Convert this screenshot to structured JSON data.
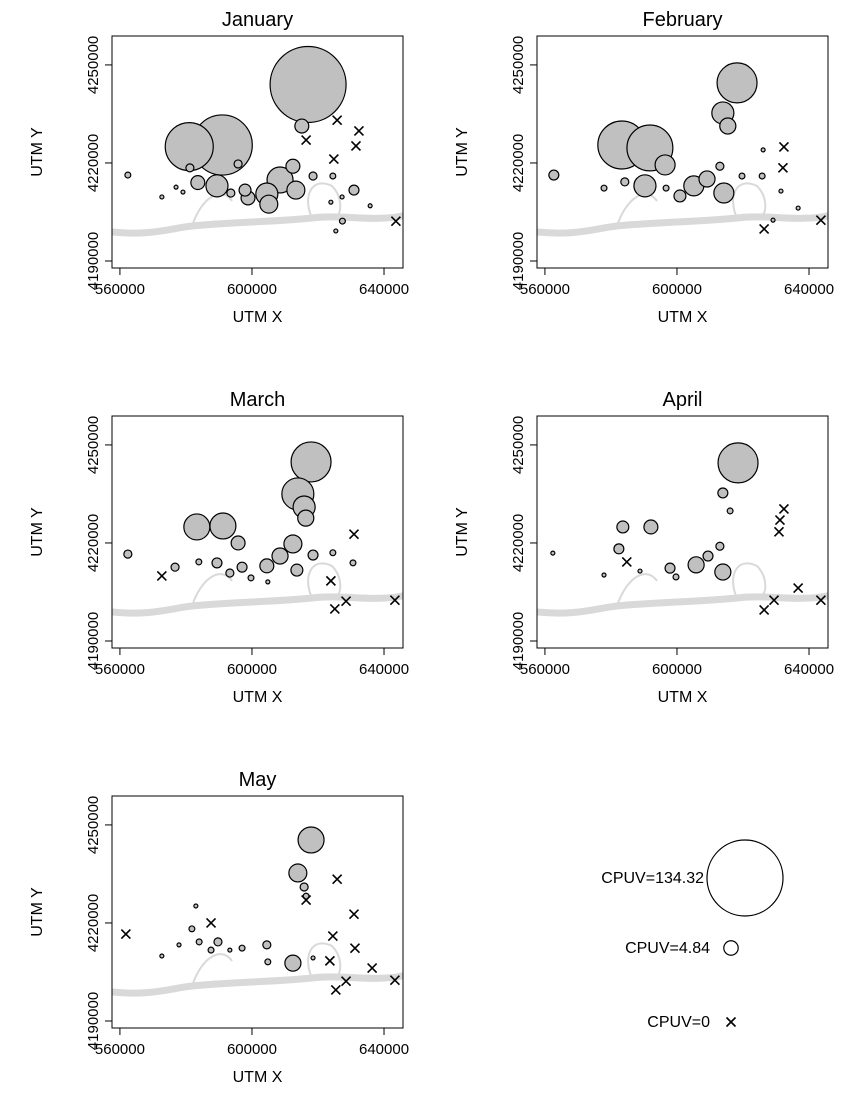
{
  "chart_data": [
    {
      "type": "bubble",
      "title": "January",
      "x_label": "UTM X",
      "y_label": "UTM Y",
      "xlim": [
        557600,
        645750
      ],
      "ylim": [
        4187860,
        4258850
      ],
      "xticks": [
        560000,
        600000,
        640000
      ],
      "yticks": [
        4190000,
        4220000,
        4250000
      ],
      "series": [
        {
          "name": "CPUV",
          "color": "#c0c0c0",
          "x": [
            617000,
            581000,
            591000,
            589400,
            583600,
            595800,
            597900,
            598800,
            593600,
            604500,
            605100,
            608500,
            613300,
            612400,
            615100,
            562400,
            572700,
            577000,
            579100,
            581200,
            618500,
            624500,
            630900,
            623900,
            627400,
            627300,
            625400,
            635800,
            625800,
            632400,
            631500,
            624800,
            616400,
            643600
          ],
          "values": [
            4244000,
            4225000,
            4225500,
            4213000,
            4214000,
            4219700,
            4211700,
            4209300,
            4210800,
            4210500,
            4207400,
            4214800,
            4211700,
            4219000,
            4231300,
            4216300,
            4209600,
            4212600,
            4211100,
            4218500,
            4216000,
            4216000,
            4211700,
            4208000,
            4202200,
            4209600,
            4199200,
            4206900,
            4233100,
            4229800,
            4225200,
            4221200,
            4227000,
            4202200
          ],
          "sizes": [
            134.32,
            53.6,
            84,
            11.3,
            4.5,
            1.5,
            3.3,
            4.5,
            1.5,
            11.3,
            7.5,
            15.7,
            7.5,
            4.5,
            4.5,
            0.8,
            0.37,
            0.37,
            0.37,
            1.5,
            1.5,
            0.8,
            2.3,
            0.37,
            0.8,
            0.37,
            0.37,
            0.37,
            0,
            0,
            0,
            0,
            0,
            0
          ]
        }
      ]
    },
    {
      "type": "bubble",
      "title": "February",
      "x_label": "UTM X",
      "y_label": "UTM Y",
      "xlim": [
        557600,
        645750
      ],
      "ylim": [
        4187860,
        4258850
      ],
      "xticks": [
        560000,
        600000,
        640000
      ],
      "yticks": [
        4190000,
        4220000,
        4250000
      ],
      "series": [
        {
          "name": "CPUV",
          "color": "#c0c0c0",
          "x": [
            618200,
            613900,
            615400,
            583300,
            591800,
            596400,
            590300,
            605100,
            609100,
            614200,
            600900,
            596700,
            562700,
            577900,
            584200,
            613000,
            619700,
            625800,
            626100,
            631500,
            636700,
            629100,
            632400,
            632100,
            626400,
            643600
          ],
          "values": [
            4244500,
            4235300,
            4231300,
            4225500,
            4224600,
            4219400,
            4213000,
            4213000,
            4215100,
            4210800,
            4209900,
            4212300,
            4216300,
            4212300,
            4214200,
            4219000,
            4216000,
            4216000,
            4224000,
            4211400,
            4206200,
            4202500,
            4224900,
            4218500,
            4199800,
            4202500
          ],
          "sizes": [
            37.2,
            11.3,
            6,
            53.6,
            49,
            9.3,
            11.3,
            9.3,
            6,
            9.3,
            3.3,
            0.8,
            2.3,
            0.8,
            1.5,
            1.5,
            0.8,
            0.8,
            0.37,
            0.37,
            0.37,
            0.37,
            0,
            0,
            0,
            0
          ]
        }
      ]
    },
    {
      "type": "bubble",
      "title": "March",
      "x_label": "UTM X",
      "y_label": "UTM Y",
      "xlim": [
        557600,
        645750
      ],
      "ylim": [
        4187860,
        4258850
      ],
      "xticks": [
        560000,
        600000,
        640000
      ],
      "yticks": [
        4190000,
        4220000,
        4250000
      ],
      "series": [
        {
          "name": "CPUV",
          "color": "#c0c0c0",
          "x": [
            617900,
            613900,
            615800,
            616300,
            583300,
            591200,
            595800,
            612400,
            608500,
            604500,
            613600,
            618500,
            597000,
            589400,
            583900,
            576700,
            593300,
            562400,
            599700,
            604800,
            624500,
            630600,
            572700,
            630900,
            623900,
            625100,
            628500,
            643300
          ],
          "values": [
            4244800,
            4235000,
            4231000,
            4227600,
            4224900,
            4225200,
            4220000,
            4219700,
            4216000,
            4213000,
            4211700,
            4216300,
            4212600,
            4213900,
            4214200,
            4212600,
            4210800,
            4216600,
            4209300,
            4208100,
            4217000,
            4213900,
            4209900,
            4222700,
            4208400,
            4199800,
            4202200,
            4202500
          ],
          "sizes": [
            37.2,
            23.8,
            11.3,
            6,
            15.7,
            15.7,
            4.5,
            7.5,
            6,
            4.5,
            3.3,
            2.3,
            2.3,
            2.3,
            0.8,
            1.5,
            1.5,
            1.5,
            0.8,
            0.37,
            0.8,
            0.8,
            0,
            0,
            0,
            0,
            0,
            0
          ]
        }
      ]
    },
    {
      "type": "bubble",
      "title": "April",
      "x_label": "UTM X",
      "y_label": "UTM Y",
      "xlim": [
        557600,
        645750
      ],
      "ylim": [
        4187860,
        4258850
      ],
      "xticks": [
        560000,
        600000,
        640000
      ],
      "yticks": [
        4190000,
        4220000,
        4250000
      ],
      "series": [
        {
          "name": "CPUV",
          "color": "#c0c0c0",
          "x": [
            618500,
            613900,
            583600,
            592100,
            582400,
            613900,
            605800,
            609400,
            597900,
            613000,
            616100,
            599700,
            588800,
            577900,
            562400,
            584800,
            632400,
            631200,
            630900,
            636700,
            629400,
            626400,
            643600
          ],
          "values": [
            4244500,
            4235300,
            4224900,
            4224900,
            4218200,
            4211100,
            4213300,
            4216000,
            4212300,
            4219000,
            4229800,
            4209600,
            4211400,
            4210200,
            4216900,
            4214200,
            4230400,
            4227000,
            4223400,
            4206200,
            4202500,
            4199500,
            4202500
          ],
          "sizes": [
            37.2,
            2.3,
            3.3,
            4.5,
            2.3,
            6,
            6,
            2.3,
            2.3,
            1.5,
            0.8,
            0.8,
            0.37,
            0.37,
            0.37,
            0,
            0,
            0,
            0,
            0,
            0,
            0,
            0
          ]
        }
      ]
    },
    {
      "type": "bubble",
      "title": "May",
      "x_label": "UTM X",
      "y_label": "UTM Y",
      "xlim": [
        557600,
        645750
      ],
      "ylim": [
        4187860,
        4258850
      ],
      "xticks": [
        560000,
        600000,
        640000
      ],
      "yticks": [
        4190000,
        4220000,
        4250000
      ],
      "series": [
        {
          "name": "CPUV",
          "color": "#c0c0c0",
          "x": [
            617900,
            613900,
            615800,
            612400,
            616400,
            581800,
            589700,
            584000,
            604500,
            597000,
            593300,
            587600,
            577900,
            572700,
            604800,
            583000,
            618500,
            561800,
            587600,
            616400,
            625800,
            630900,
            624500,
            631200,
            623600,
            636400,
            628500,
            625400,
            643300
          ],
          "values": [
            4245400,
            4235300,
            4231000,
            4207700,
            4228200,
            4218200,
            4214200,
            4214200,
            4213300,
            4212300,
            4211700,
            4211700,
            4213300,
            4209900,
            4208100,
            4225200,
            4209300,
            4216600,
            4220000,
            4227000,
            4233400,
            4222700,
            4216000,
            4212300,
            4208400,
            4206200,
            4202200,
            4199500,
            4202500
          ],
          "sizes": [
            15.7,
            7.5,
            1.5,
            6,
            0.8,
            0.8,
            1.5,
            0.8,
            1.5,
            0.8,
            0.37,
            0.8,
            0.37,
            0.37,
            0.8,
            0.37,
            0.37,
            0,
            0,
            0,
            0,
            0,
            0,
            0,
            0,
            0,
            0,
            0,
            0
          ]
        }
      ]
    }
  ],
  "legend": {
    "entries": [
      {
        "label": "CPUV=134.32",
        "value": 134.32
      },
      {
        "label": "CPUV=4.84",
        "value": 4.84
      },
      {
        "label": "CPUV=0",
        "value": 0
      }
    ]
  }
}
